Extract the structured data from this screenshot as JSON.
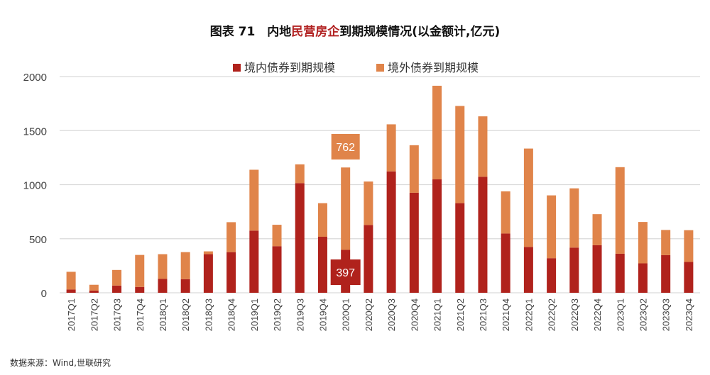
{
  "title": {
    "prefix": "图表 71　内地",
    "highlight": "民营房企",
    "suffix": "到期规模情况(以金额计,亿元)"
  },
  "source": "数据来源：Wind,世联研究",
  "colors": {
    "domestic": "#b0221c",
    "overseas": "#e0844a",
    "highlight": "#b22222"
  },
  "chart_data": {
    "type": "bar",
    "stacked": true,
    "categories": [
      "2017Q1",
      "2017Q2",
      "2017Q3",
      "2017Q4",
      "2018Q1",
      "2018Q2",
      "2018Q3",
      "2018Q4",
      "2019Q1",
      "2019Q2",
      "2019Q3",
      "2019Q4",
      "2020Q1",
      "2020Q2",
      "2020Q3",
      "2020Q4",
      "2021Q1",
      "2021Q2",
      "2021Q3",
      "2021Q4",
      "2022Q1",
      "2022Q2",
      "2022Q3",
      "2022Q4",
      "2023Q1",
      "2023Q2",
      "2023Q3",
      "2023Q4"
    ],
    "series": [
      {
        "name": "境内债券到期规模",
        "values": [
          30,
          20,
          67,
          54,
          128,
          126,
          357,
          376,
          575,
          431,
          1014,
          518,
          397,
          627,
          1123,
          925,
          1049,
          829,
          1073,
          548,
          424,
          320,
          418,
          440,
          361,
          272,
          348,
          285
        ]
      },
      {
        "name": "境外债券到期规模",
        "values": [
          164,
          54,
          144,
          296,
          229,
          250,
          26,
          277,
          563,
          198,
          174,
          311,
          762,
          402,
          435,
          440,
          866,
          899,
          559,
          390,
          910,
          581,
          548,
          287,
          801,
          383,
          233,
          294
        ]
      }
    ],
    "ylim": [
      0,
      2000
    ],
    "yticks": [
      0,
      500,
      1000,
      1500,
      2000
    ],
    "grid": true,
    "legend": "top-center",
    "annotations": [
      {
        "category": "2020Q1",
        "series": "境外债券到期规模",
        "label": "762"
      },
      {
        "category": "2020Q1",
        "series": "境内债券到期规模",
        "label": "397"
      }
    ]
  }
}
